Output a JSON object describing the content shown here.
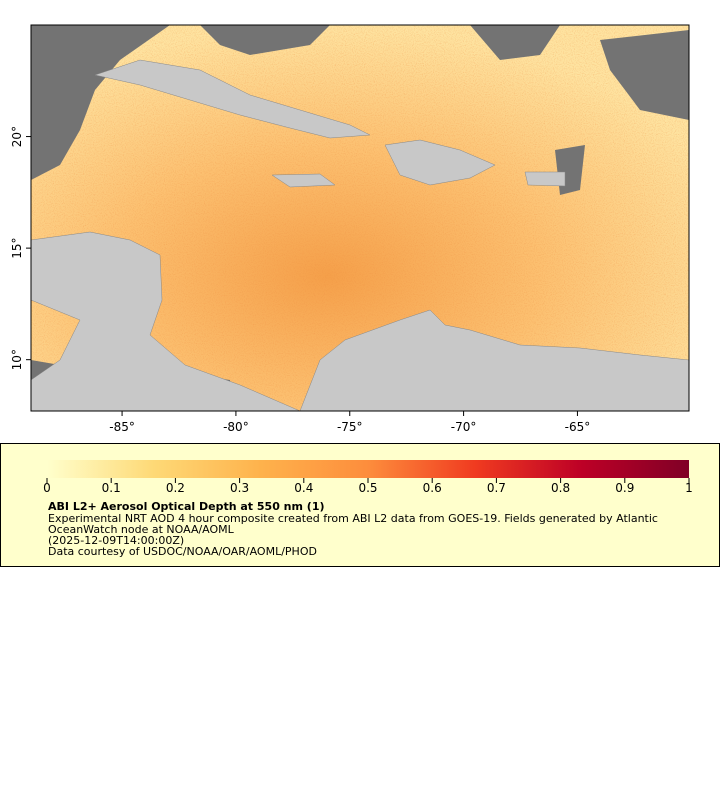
{
  "map": {
    "xlim": [
      -89,
      -60.1
    ],
    "ylim": [
      7.7,
      25
    ],
    "xticks": [
      {
        "value": -85,
        "label": "-85°"
      },
      {
        "value": -80,
        "label": "-80°"
      },
      {
        "value": -75,
        "label": "-75°"
      },
      {
        "value": -70,
        "label": "-70°"
      },
      {
        "value": -65,
        "label": "-65°"
      }
    ],
    "yticks": [
      {
        "value": 10,
        "label": "10°"
      },
      {
        "value": 15,
        "label": "15°"
      },
      {
        "value": 20,
        "label": "20°"
      }
    ]
  },
  "colorbar": {
    "lim": [
      0,
      1
    ],
    "ticks": [
      0,
      0.1,
      0.2,
      0.3,
      0.4,
      0.5,
      0.6,
      0.7,
      0.8,
      0.9,
      1
    ],
    "colors": [
      "#ffffcc",
      "#fed976",
      "#feb24c",
      "#fd8d3c",
      "#f03b20",
      "#bd0026",
      "#800026"
    ]
  },
  "legend": {
    "title": "ABI L2+ Aerosol Optical Depth at 550 nm (1)",
    "lines": [
      "Experimental NRT AOD 4 hour composite created from ABI L2 data from GOES-19. Fields generated by Atlantic",
      "OceanWatch node at NOAA/AOML",
      "(2025-12-09T14:00:00Z)",
      "Data courtesy of USDOC/NOAA/OAR/AOML/PHOD"
    ]
  }
}
